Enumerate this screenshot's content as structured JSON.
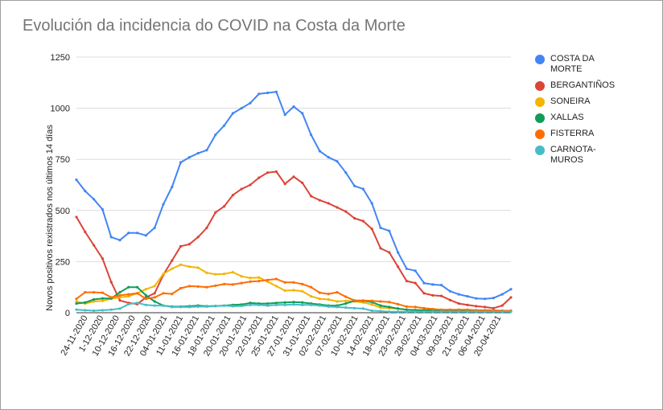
{
  "chart_data": {
    "type": "line",
    "title": "Evolución da incidencia do COVID na Costa da Morte",
    "xlabel": "",
    "ylabel": "Novos positivos rexistrados nos últimos 14 días",
    "ylim": [
      0,
      1250
    ],
    "yticks": [
      0,
      250,
      500,
      750,
      1000,
      1250
    ],
    "grid": true,
    "legend_position": "right",
    "x_tick_labels": [
      "24-11-2020",
      "1-12-2020",
      "10-12-2020",
      "16-12-2020",
      "22-12-2020",
      "04-01-2021",
      "11-01-2021",
      "16-01-2021",
      "18-01-2021",
      "20-01-2021",
      "20-01-2021",
      "22-01-2021",
      "25-01-2021",
      "27-01-2021",
      "31-01-2021",
      "02-02-2021",
      "07-02-2021",
      "10-02-2021",
      "14-02-2021",
      "18-02-2021",
      "23-02-2021",
      "28-02-2021",
      "04-03-2021",
      "09-03-2021",
      "21-03-2021",
      "06-04-2021",
      "20-04-2021"
    ],
    "series": [
      {
        "name": "COSTA DA MORTE",
        "color": "#4285f4",
        "values": [
          650,
          595,
          555,
          505,
          370,
          355,
          390,
          390,
          378,
          415,
          530,
          615,
          735,
          760,
          780,
          795,
          870,
          915,
          975,
          1000,
          1025,
          1070,
          1075,
          1080,
          968,
          1008,
          975,
          870,
          790,
          760,
          740,
          685,
          620,
          605,
          535,
          415,
          400,
          295,
          215,
          205,
          145,
          138,
          135,
          105,
          90,
          80,
          70,
          68,
          72,
          90,
          115
        ]
      },
      {
        "name": "BERGANTIÑOS",
        "color": "#db4437",
        "values": [
          468,
          395,
          330,
          265,
          150,
          60,
          48,
          42,
          75,
          95,
          185,
          255,
          325,
          335,
          370,
          415,
          490,
          520,
          575,
          605,
          625,
          660,
          685,
          690,
          630,
          665,
          635,
          570,
          550,
          535,
          515,
          495,
          462,
          448,
          410,
          315,
          295,
          225,
          155,
          145,
          95,
          85,
          82,
          62,
          45,
          38,
          32,
          28,
          22,
          35,
          75
        ]
      },
      {
        "name": "SONEIRA",
        "color": "#f4b400",
        "values": [
          55,
          45,
          55,
          58,
          68,
          75,
          80,
          95,
          115,
          130,
          190,
          215,
          235,
          225,
          220,
          195,
          188,
          190,
          198,
          178,
          170,
          172,
          152,
          130,
          108,
          110,
          105,
          80,
          68,
          65,
          55,
          58,
          55,
          50,
          40,
          25,
          22,
          20,
          15,
          14,
          12,
          12,
          12,
          12,
          10,
          10,
          10,
          9,
          8,
          8,
          8
        ]
      },
      {
        "name": "XALLAS",
        "color": "#0f9d58",
        "values": [
          45,
          50,
          65,
          70,
          70,
          100,
          125,
          125,
          85,
          55,
          35,
          30,
          30,
          32,
          35,
          32,
          33,
          35,
          38,
          40,
          48,
          45,
          45,
          48,
          50,
          52,
          50,
          45,
          40,
          35,
          35,
          45,
          58,
          58,
          52,
          35,
          28,
          20,
          15,
          12,
          12,
          12,
          10,
          8,
          8,
          8,
          7,
          7,
          7,
          7,
          7
        ]
      },
      {
        "name": "FISTERRA",
        "color": "#ff6d01",
        "values": [
          68,
          100,
          100,
          98,
          75,
          85,
          90,
          95,
          68,
          75,
          95,
          92,
          120,
          130,
          128,
          125,
          132,
          140,
          138,
          145,
          152,
          155,
          160,
          165,
          148,
          148,
          140,
          125,
          98,
          92,
          100,
          78,
          60,
          60,
          58,
          55,
          52,
          42,
          30,
          28,
          22,
          18,
          15,
          15,
          15,
          15,
          12,
          12,
          12,
          10,
          10
        ]
      },
      {
        "name": "CARNOTA-MUROS",
        "color": "#46bdc6",
        "values": [
          15,
          12,
          10,
          12,
          15,
          20,
          42,
          48,
          38,
          35,
          35,
          28,
          28,
          28,
          30,
          30,
          32,
          35,
          32,
          33,
          38,
          38,
          35,
          38,
          38,
          40,
          38,
          38,
          35,
          30,
          28,
          25,
          22,
          20,
          10,
          8,
          5,
          5,
          5,
          5,
          5,
          5,
          5,
          5,
          5,
          5,
          5,
          5,
          5,
          5,
          5
        ]
      }
    ]
  }
}
